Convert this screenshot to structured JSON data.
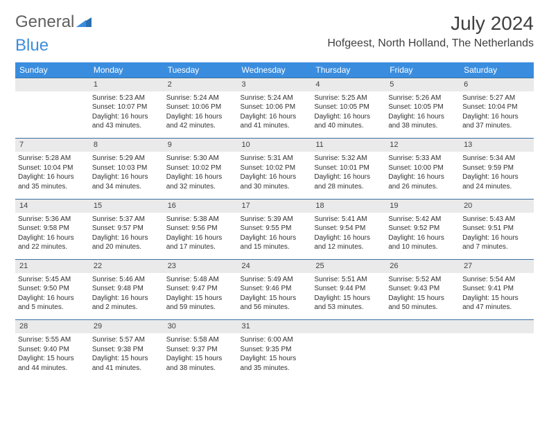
{
  "logo": {
    "text1": "General",
    "text2": "Blue"
  },
  "title": "July 2024",
  "location": "Hofgeest, North Holland, The Netherlands",
  "colors": {
    "header_bg": "#3a8dde",
    "header_text": "#ffffff",
    "daynum_bg": "#eaeaea",
    "row_border": "#3a6fa0",
    "body_text": "#303030",
    "logo_gray": "#606060",
    "logo_blue": "#3a8dde"
  },
  "weekdays": [
    "Sunday",
    "Monday",
    "Tuesday",
    "Wednesday",
    "Thursday",
    "Friday",
    "Saturday"
  ],
  "weeks": [
    {
      "nums": [
        "",
        "1",
        "2",
        "3",
        "4",
        "5",
        "6"
      ],
      "cells": [
        {
          "sunrise": "",
          "sunset": "",
          "daylight": ""
        },
        {
          "sunrise": "Sunrise: 5:23 AM",
          "sunset": "Sunset: 10:07 PM",
          "daylight": "Daylight: 16 hours and 43 minutes."
        },
        {
          "sunrise": "Sunrise: 5:24 AM",
          "sunset": "Sunset: 10:06 PM",
          "daylight": "Daylight: 16 hours and 42 minutes."
        },
        {
          "sunrise": "Sunrise: 5:24 AM",
          "sunset": "Sunset: 10:06 PM",
          "daylight": "Daylight: 16 hours and 41 minutes."
        },
        {
          "sunrise": "Sunrise: 5:25 AM",
          "sunset": "Sunset: 10:05 PM",
          "daylight": "Daylight: 16 hours and 40 minutes."
        },
        {
          "sunrise": "Sunrise: 5:26 AM",
          "sunset": "Sunset: 10:05 PM",
          "daylight": "Daylight: 16 hours and 38 minutes."
        },
        {
          "sunrise": "Sunrise: 5:27 AM",
          "sunset": "Sunset: 10:04 PM",
          "daylight": "Daylight: 16 hours and 37 minutes."
        }
      ]
    },
    {
      "nums": [
        "7",
        "8",
        "9",
        "10",
        "11",
        "12",
        "13"
      ],
      "cells": [
        {
          "sunrise": "Sunrise: 5:28 AM",
          "sunset": "Sunset: 10:04 PM",
          "daylight": "Daylight: 16 hours and 35 minutes."
        },
        {
          "sunrise": "Sunrise: 5:29 AM",
          "sunset": "Sunset: 10:03 PM",
          "daylight": "Daylight: 16 hours and 34 minutes."
        },
        {
          "sunrise": "Sunrise: 5:30 AM",
          "sunset": "Sunset: 10:02 PM",
          "daylight": "Daylight: 16 hours and 32 minutes."
        },
        {
          "sunrise": "Sunrise: 5:31 AM",
          "sunset": "Sunset: 10:02 PM",
          "daylight": "Daylight: 16 hours and 30 minutes."
        },
        {
          "sunrise": "Sunrise: 5:32 AM",
          "sunset": "Sunset: 10:01 PM",
          "daylight": "Daylight: 16 hours and 28 minutes."
        },
        {
          "sunrise": "Sunrise: 5:33 AM",
          "sunset": "Sunset: 10:00 PM",
          "daylight": "Daylight: 16 hours and 26 minutes."
        },
        {
          "sunrise": "Sunrise: 5:34 AM",
          "sunset": "Sunset: 9:59 PM",
          "daylight": "Daylight: 16 hours and 24 minutes."
        }
      ]
    },
    {
      "nums": [
        "14",
        "15",
        "16",
        "17",
        "18",
        "19",
        "20"
      ],
      "cells": [
        {
          "sunrise": "Sunrise: 5:36 AM",
          "sunset": "Sunset: 9:58 PM",
          "daylight": "Daylight: 16 hours and 22 minutes."
        },
        {
          "sunrise": "Sunrise: 5:37 AM",
          "sunset": "Sunset: 9:57 PM",
          "daylight": "Daylight: 16 hours and 20 minutes."
        },
        {
          "sunrise": "Sunrise: 5:38 AM",
          "sunset": "Sunset: 9:56 PM",
          "daylight": "Daylight: 16 hours and 17 minutes."
        },
        {
          "sunrise": "Sunrise: 5:39 AM",
          "sunset": "Sunset: 9:55 PM",
          "daylight": "Daylight: 16 hours and 15 minutes."
        },
        {
          "sunrise": "Sunrise: 5:41 AM",
          "sunset": "Sunset: 9:54 PM",
          "daylight": "Daylight: 16 hours and 12 minutes."
        },
        {
          "sunrise": "Sunrise: 5:42 AM",
          "sunset": "Sunset: 9:52 PM",
          "daylight": "Daylight: 16 hours and 10 minutes."
        },
        {
          "sunrise": "Sunrise: 5:43 AM",
          "sunset": "Sunset: 9:51 PM",
          "daylight": "Daylight: 16 hours and 7 minutes."
        }
      ]
    },
    {
      "nums": [
        "21",
        "22",
        "23",
        "24",
        "25",
        "26",
        "27"
      ],
      "cells": [
        {
          "sunrise": "Sunrise: 5:45 AM",
          "sunset": "Sunset: 9:50 PM",
          "daylight": "Daylight: 16 hours and 5 minutes."
        },
        {
          "sunrise": "Sunrise: 5:46 AM",
          "sunset": "Sunset: 9:48 PM",
          "daylight": "Daylight: 16 hours and 2 minutes."
        },
        {
          "sunrise": "Sunrise: 5:48 AM",
          "sunset": "Sunset: 9:47 PM",
          "daylight": "Daylight: 15 hours and 59 minutes."
        },
        {
          "sunrise": "Sunrise: 5:49 AM",
          "sunset": "Sunset: 9:46 PM",
          "daylight": "Daylight: 15 hours and 56 minutes."
        },
        {
          "sunrise": "Sunrise: 5:51 AM",
          "sunset": "Sunset: 9:44 PM",
          "daylight": "Daylight: 15 hours and 53 minutes."
        },
        {
          "sunrise": "Sunrise: 5:52 AM",
          "sunset": "Sunset: 9:43 PM",
          "daylight": "Daylight: 15 hours and 50 minutes."
        },
        {
          "sunrise": "Sunrise: 5:54 AM",
          "sunset": "Sunset: 9:41 PM",
          "daylight": "Daylight: 15 hours and 47 minutes."
        }
      ]
    },
    {
      "nums": [
        "28",
        "29",
        "30",
        "31",
        "",
        "",
        ""
      ],
      "cells": [
        {
          "sunrise": "Sunrise: 5:55 AM",
          "sunset": "Sunset: 9:40 PM",
          "daylight": "Daylight: 15 hours and 44 minutes."
        },
        {
          "sunrise": "Sunrise: 5:57 AM",
          "sunset": "Sunset: 9:38 PM",
          "daylight": "Daylight: 15 hours and 41 minutes."
        },
        {
          "sunrise": "Sunrise: 5:58 AM",
          "sunset": "Sunset: 9:37 PM",
          "daylight": "Daylight: 15 hours and 38 minutes."
        },
        {
          "sunrise": "Sunrise: 6:00 AM",
          "sunset": "Sunset: 9:35 PM",
          "daylight": "Daylight: 15 hours and 35 minutes."
        },
        {
          "sunrise": "",
          "sunset": "",
          "daylight": ""
        },
        {
          "sunrise": "",
          "sunset": "",
          "daylight": ""
        },
        {
          "sunrise": "",
          "sunset": "",
          "daylight": ""
        }
      ]
    }
  ]
}
